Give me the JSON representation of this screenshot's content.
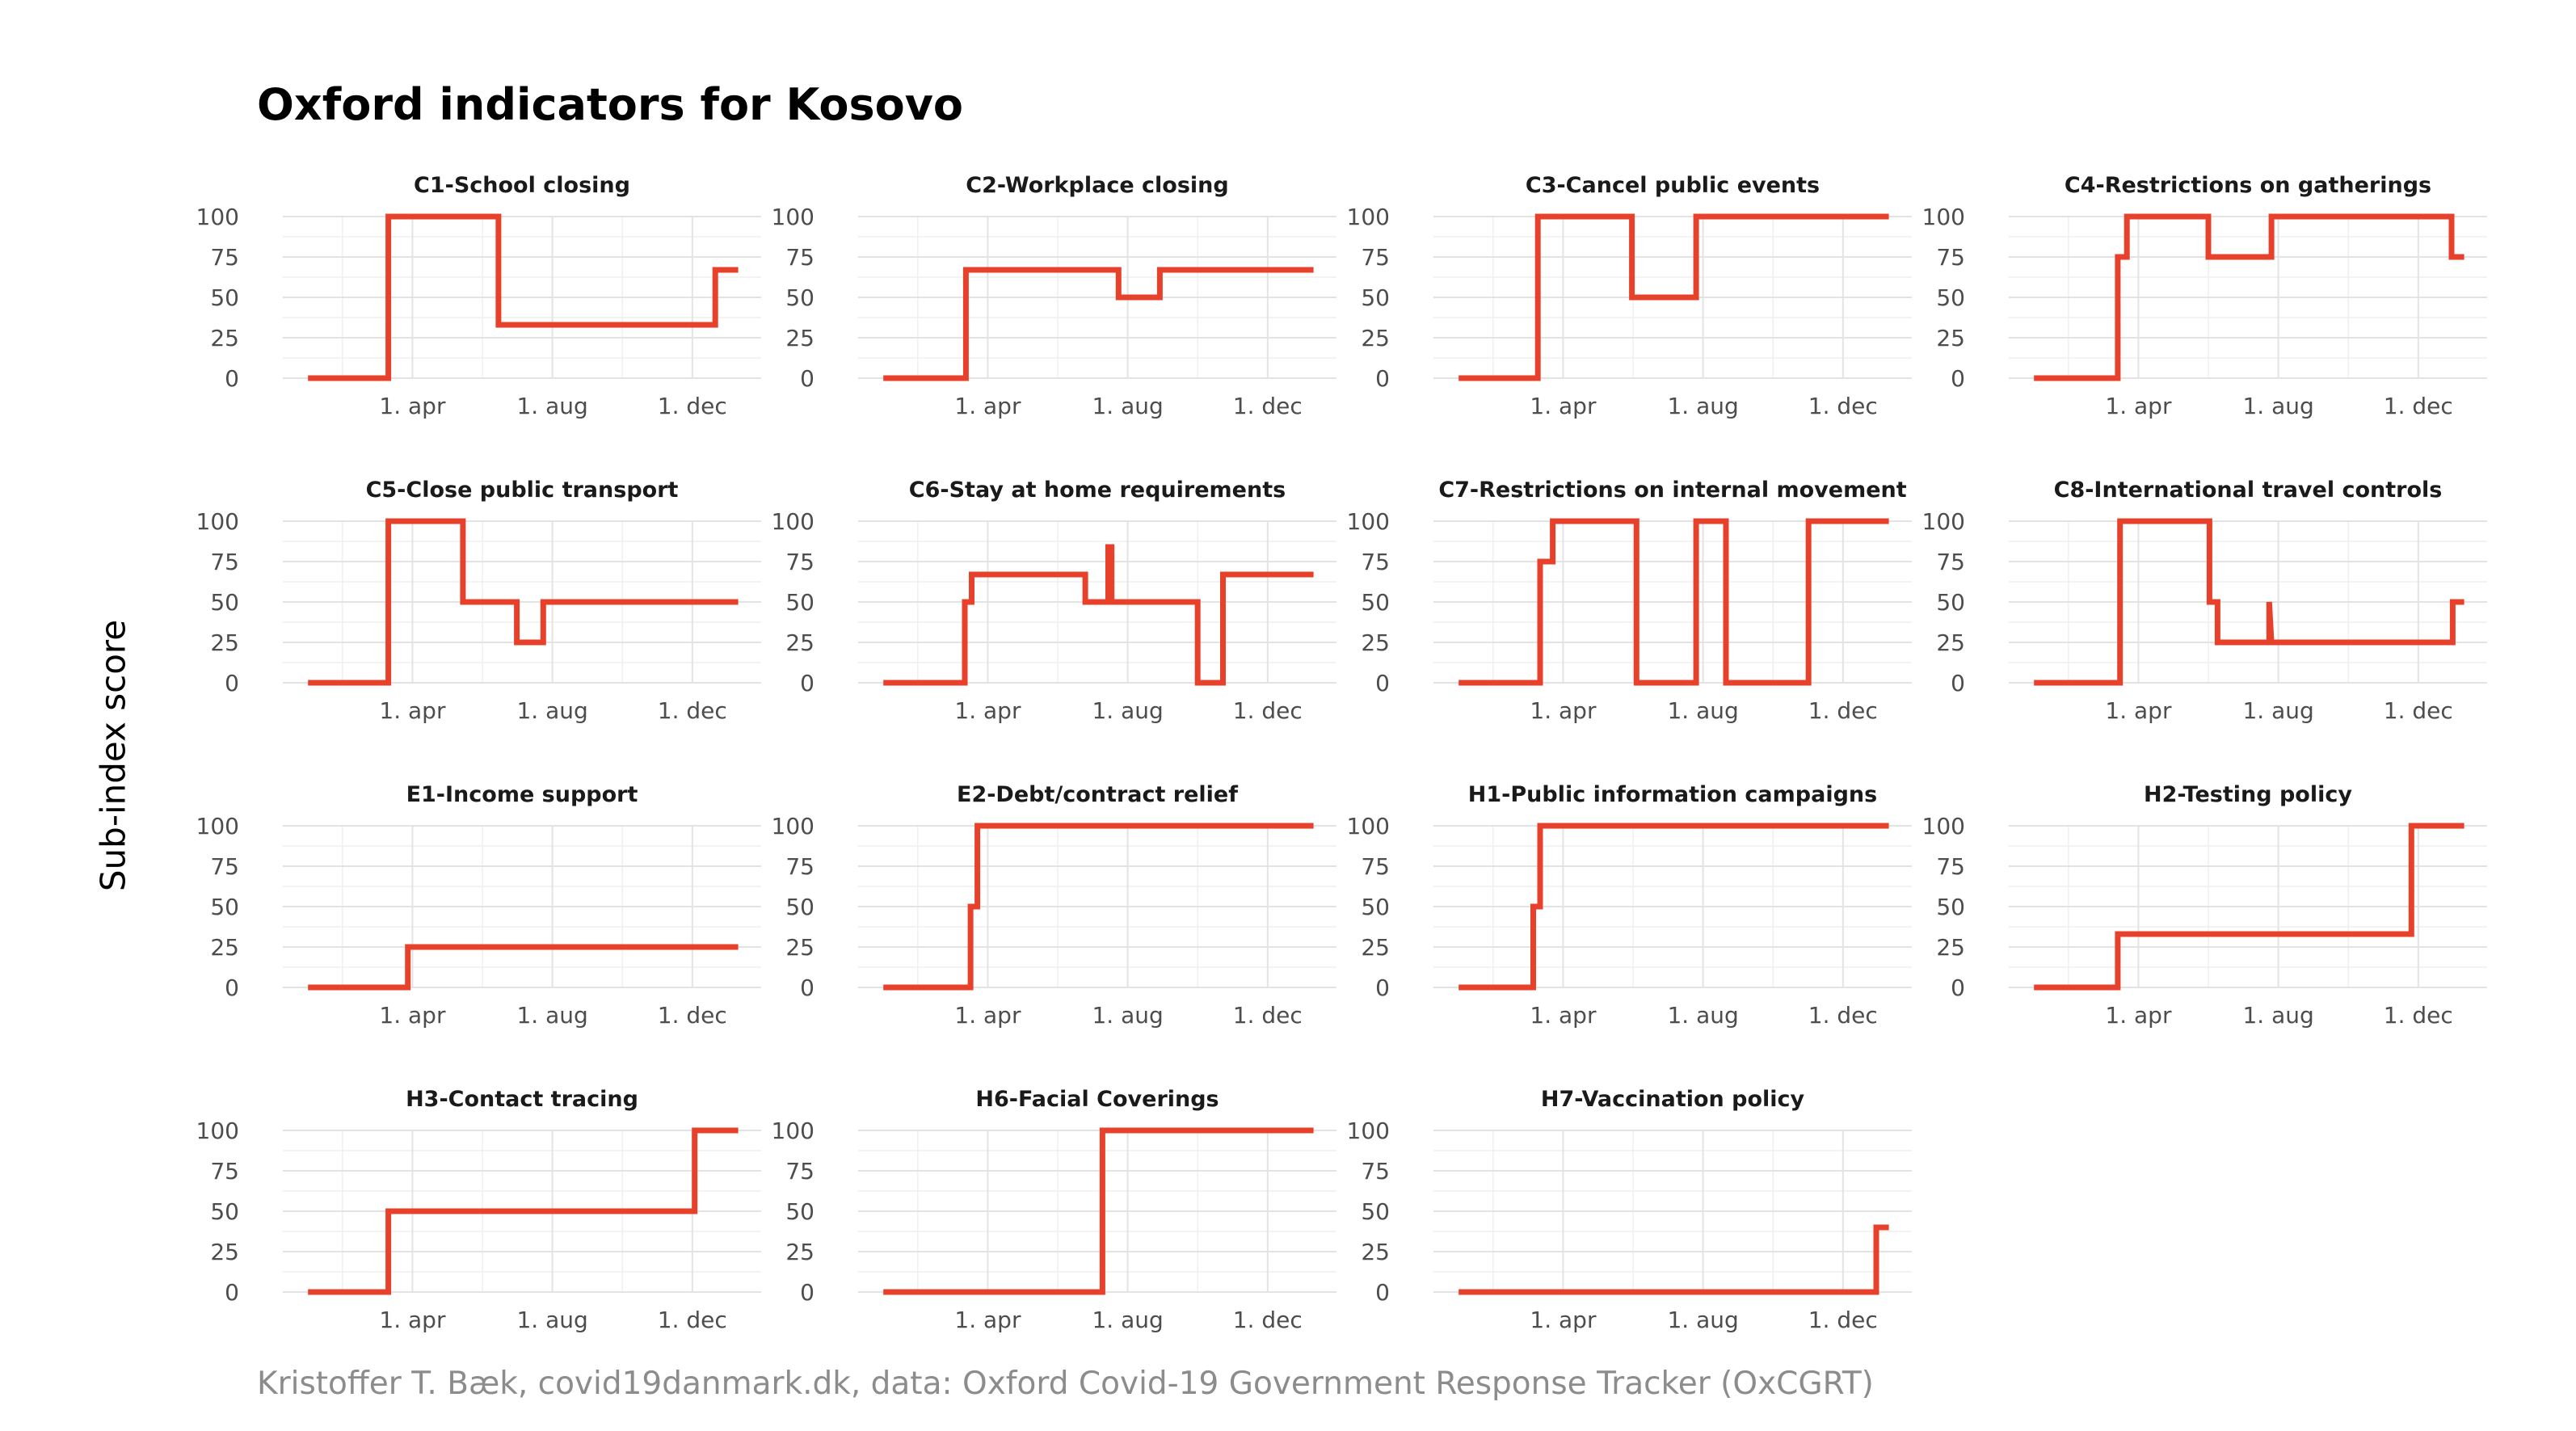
{
  "title": "Oxford indicators for Kosovo",
  "ylabel": "Sub-index score",
  "caption": "Kristoffer T. Bæk, covid19danmark.dk, data: Oxford Covid-19 Government Response Tracker (OxCGRT)",
  "colors": {
    "line": "#e8412b",
    "grid": "#e3e3e3"
  },
  "chart_data": [
    {
      "type": "line",
      "title": "C1-School closing",
      "x": [
        "2020-01-01",
        "2020-03-11",
        "2020-03-11",
        "2020-06-15",
        "2020-06-15",
        "2020-12-21",
        "2020-12-21",
        "2021-01-10"
      ],
      "y": [
        0,
        0,
        100,
        100,
        33,
        33,
        67,
        67
      ],
      "ylim": [
        0,
        100
      ],
      "yticks": [
        "0",
        "25",
        "50",
        "75",
        "100"
      ],
      "xticks": [
        "1. apr",
        "1. aug",
        "1. dec"
      ],
      "xtick_dates": [
        "2020-04-01",
        "2020-08-01",
        "2020-12-01"
      ],
      "xlim": [
        "2019-12-10",
        "2021-01-30"
      ],
      "grid": true
    },
    {
      "type": "line",
      "title": "C2-Workplace closing",
      "x": [
        "2020-01-01",
        "2020-03-13",
        "2020-03-13",
        "2020-07-24",
        "2020-07-24",
        "2020-08-29",
        "2020-08-29",
        "2021-01-10"
      ],
      "y": [
        0,
        0,
        67,
        67,
        50,
        50,
        67,
        67
      ],
      "ylim": [
        0,
        100
      ],
      "yticks": [
        "0",
        "25",
        "50",
        "75",
        "100"
      ],
      "xticks": [
        "1. apr",
        "1. aug",
        "1. dec"
      ],
      "xtick_dates": [
        "2020-04-01",
        "2020-08-01",
        "2020-12-01"
      ],
      "xlim": [
        "2019-12-10",
        "2021-01-30"
      ],
      "grid": true
    },
    {
      "type": "line",
      "title": "C3-Cancel public events",
      "x": [
        "2020-01-01",
        "2020-03-10",
        "2020-03-10",
        "2020-05-31",
        "2020-05-31",
        "2020-07-26",
        "2020-07-26",
        "2021-01-10"
      ],
      "y": [
        0,
        0,
        100,
        100,
        50,
        50,
        100,
        100
      ],
      "ylim": [
        0,
        100
      ],
      "yticks": [
        "0",
        "25",
        "50",
        "75",
        "100"
      ],
      "xticks": [
        "1. apr",
        "1. aug",
        "1. dec"
      ],
      "xtick_dates": [
        "2020-04-01",
        "2020-08-01",
        "2020-12-01"
      ],
      "xlim": [
        "2019-12-10",
        "2021-01-30"
      ],
      "grid": true
    },
    {
      "type": "line",
      "title": "C4-Restrictions on gatherings",
      "x": [
        "2020-01-01",
        "2020-03-14",
        "2020-03-14",
        "2020-03-22",
        "2020-03-22",
        "2020-06-01",
        "2020-06-01",
        "2020-07-26",
        "2020-07-26",
        "2020-12-30",
        "2020-12-30",
        "2021-01-10"
      ],
      "y": [
        0,
        0,
        75,
        75,
        100,
        100,
        75,
        75,
        100,
        100,
        75,
        75
      ],
      "ylim": [
        0,
        100
      ],
      "yticks": [
        "0",
        "25",
        "50",
        "75",
        "100"
      ],
      "xticks": [
        "1. apr",
        "1. aug",
        "1. dec"
      ],
      "xtick_dates": [
        "2020-04-01",
        "2020-08-01",
        "2020-12-01"
      ],
      "xlim": [
        "2019-12-10",
        "2021-01-30"
      ],
      "grid": true
    },
    {
      "type": "line",
      "title": "C5-Close public transport",
      "x": [
        "2020-01-01",
        "2020-03-11",
        "2020-03-11",
        "2020-05-15",
        "2020-05-15",
        "2020-07-01",
        "2020-07-01",
        "2020-07-24",
        "2020-07-24",
        "2021-01-10"
      ],
      "y": [
        0,
        0,
        100,
        100,
        50,
        50,
        25,
        25,
        50,
        50
      ],
      "ylim": [
        0,
        100
      ],
      "yticks": [
        "0",
        "25",
        "50",
        "75",
        "100"
      ],
      "xticks": [
        "1. apr",
        "1. aug",
        "1. dec"
      ],
      "xtick_dates": [
        "2020-04-01",
        "2020-08-01",
        "2020-12-01"
      ],
      "xlim": [
        "2019-12-10",
        "2021-01-30"
      ],
      "grid": true
    },
    {
      "type": "line",
      "title": "C6-Stay at home requirements",
      "x": [
        "2020-01-01",
        "2020-03-12",
        "2020-03-12",
        "2020-03-18",
        "2020-03-18",
        "2020-06-25",
        "2020-06-25",
        "2020-07-15",
        "2020-07-15",
        "2020-07-18",
        "2020-07-18",
        "2020-10-01",
        "2020-10-01",
        "2020-10-23",
        "2020-10-23",
        "2021-01-10"
      ],
      "y": [
        0,
        0,
        50,
        50,
        67,
        67,
        50,
        50,
        84,
        84,
        50,
        50,
        0,
        0,
        67,
        67
      ],
      "ylim": [
        0,
        100
      ],
      "yticks": [
        "0",
        "25",
        "50",
        "75",
        "100"
      ],
      "xticks": [
        "1. apr",
        "1. aug",
        "1. dec"
      ],
      "xtick_dates": [
        "2020-04-01",
        "2020-08-01",
        "2020-12-01"
      ],
      "xlim": [
        "2019-12-10",
        "2021-01-30"
      ],
      "grid": true
    },
    {
      "type": "line",
      "title": "C7-Restrictions on internal movement",
      "x": [
        "2020-01-01",
        "2020-03-12",
        "2020-03-12",
        "2020-03-23",
        "2020-03-23",
        "2020-06-04",
        "2020-06-04",
        "2020-07-26",
        "2020-07-26",
        "2020-08-21",
        "2020-08-21",
        "2020-11-01",
        "2020-11-01",
        "2021-01-10"
      ],
      "y": [
        0,
        0,
        75,
        75,
        100,
        100,
        0,
        0,
        100,
        100,
        0,
        0,
        100,
        100
      ],
      "ylim": [
        0,
        100
      ],
      "yticks": [
        "0",
        "25",
        "50",
        "75",
        "100"
      ],
      "xticks": [
        "1. apr",
        "1. aug",
        "1. dec"
      ],
      "xtick_dates": [
        "2020-04-01",
        "2020-08-01",
        "2020-12-01"
      ],
      "xlim": [
        "2019-12-10",
        "2021-01-30"
      ],
      "grid": true
    },
    {
      "type": "line",
      "title": "C8-International travel controls",
      "x": [
        "2020-01-01",
        "2020-03-16",
        "2020-03-16",
        "2020-06-02",
        "2020-06-02",
        "2020-06-09",
        "2020-06-09",
        "2020-07-24",
        "2020-07-24",
        "2020-07-26",
        "2020-07-26",
        "2020-12-31",
        "2020-12-31",
        "2021-01-10"
      ],
      "y": [
        0,
        0,
        100,
        100,
        50,
        50,
        25,
        25,
        50,
        25,
        25,
        25,
        50,
        50
      ],
      "ylim": [
        0,
        100
      ],
      "yticks": [
        "0",
        "25",
        "50",
        "75",
        "100"
      ],
      "xticks": [
        "1. apr",
        "1. aug",
        "1. dec"
      ],
      "xtick_dates": [
        "2020-04-01",
        "2020-08-01",
        "2020-12-01"
      ],
      "xlim": [
        "2019-12-10",
        "2021-01-30"
      ],
      "grid": true
    },
    {
      "type": "line",
      "title": "E1-Income support",
      "x": [
        "2020-01-01",
        "2020-03-28",
        "2020-03-28",
        "2021-01-10"
      ],
      "y": [
        0,
        0,
        25,
        25
      ],
      "ylim": [
        0,
        100
      ],
      "yticks": [
        "0",
        "25",
        "50",
        "75",
        "100"
      ],
      "xticks": [
        "1. apr",
        "1. aug",
        "1. dec"
      ],
      "xtick_dates": [
        "2020-04-01",
        "2020-08-01",
        "2020-12-01"
      ],
      "xlim": [
        "2019-12-10",
        "2021-01-30"
      ],
      "grid": true
    },
    {
      "type": "line",
      "title": "E2-Debt/contract relief",
      "x": [
        "2020-01-01",
        "2020-03-17",
        "2020-03-17",
        "2020-03-23",
        "2020-03-23",
        "2021-01-10"
      ],
      "y": [
        0,
        0,
        50,
        50,
        100,
        100
      ],
      "ylim": [
        0,
        100
      ],
      "yticks": [
        "0",
        "25",
        "50",
        "75",
        "100"
      ],
      "xticks": [
        "1. apr",
        "1. aug",
        "1. dec"
      ],
      "xtick_dates": [
        "2020-04-01",
        "2020-08-01",
        "2020-12-01"
      ],
      "xlim": [
        "2019-12-10",
        "2021-01-30"
      ],
      "grid": true
    },
    {
      "type": "line",
      "title": "H1-Public information campaigns",
      "x": [
        "2020-01-01",
        "2020-03-06",
        "2020-03-06",
        "2020-03-12",
        "2020-03-12",
        "2021-01-10"
      ],
      "y": [
        0,
        0,
        50,
        50,
        100,
        100
      ],
      "ylim": [
        0,
        100
      ],
      "yticks": [
        "0",
        "25",
        "50",
        "75",
        "100"
      ],
      "xticks": [
        "1. apr",
        "1. aug",
        "1. dec"
      ],
      "xtick_dates": [
        "2020-04-01",
        "2020-08-01",
        "2020-12-01"
      ],
      "xlim": [
        "2019-12-10",
        "2021-01-30"
      ],
      "grid": true
    },
    {
      "type": "line",
      "title": "H2-Testing policy",
      "x": [
        "2020-01-01",
        "2020-03-14",
        "2020-03-14",
        "2020-11-25",
        "2020-11-25",
        "2021-01-10"
      ],
      "y": [
        0,
        0,
        33,
        33,
        100,
        100
      ],
      "ylim": [
        0,
        100
      ],
      "yticks": [
        "0",
        "25",
        "50",
        "75",
        "100"
      ],
      "xticks": [
        "1. apr",
        "1. aug",
        "1. dec"
      ],
      "xtick_dates": [
        "2020-04-01",
        "2020-08-01",
        "2020-12-01"
      ],
      "xlim": [
        "2019-12-10",
        "2021-01-30"
      ],
      "grid": true
    },
    {
      "type": "line",
      "title": "H3-Contact tracing",
      "x": [
        "2020-01-01",
        "2020-03-11",
        "2020-03-11",
        "2020-12-03",
        "2020-12-03",
        "2021-01-10"
      ],
      "y": [
        0,
        0,
        50,
        50,
        100,
        100
      ],
      "ylim": [
        0,
        100
      ],
      "yticks": [
        "0",
        "25",
        "50",
        "75",
        "100"
      ],
      "xticks": [
        "1. apr",
        "1. aug",
        "1. dec"
      ],
      "xtick_dates": [
        "2020-04-01",
        "2020-08-01",
        "2020-12-01"
      ],
      "xlim": [
        "2019-12-10",
        "2021-01-30"
      ],
      "grid": true
    },
    {
      "type": "line",
      "title": "H6-Facial Coverings",
      "x": [
        "2020-01-01",
        "2020-07-10",
        "2020-07-10",
        "2021-01-10"
      ],
      "y": [
        0,
        0,
        100,
        100
      ],
      "ylim": [
        0,
        100
      ],
      "yticks": [
        "0",
        "25",
        "50",
        "75",
        "100"
      ],
      "xticks": [
        "1. apr",
        "1. aug",
        "1. dec"
      ],
      "xtick_dates": [
        "2020-04-01",
        "2020-08-01",
        "2020-12-01"
      ],
      "xlim": [
        "2019-12-10",
        "2021-01-30"
      ],
      "grid": true
    },
    {
      "type": "line",
      "title": "H7-Vaccination policy",
      "x": [
        "2020-01-01",
        "2020-12-30",
        "2020-12-30",
        "2021-01-10"
      ],
      "y": [
        0,
        0,
        40,
        40
      ],
      "ylim": [
        0,
        100
      ],
      "yticks": [
        "0",
        "25",
        "50",
        "75",
        "100"
      ],
      "xticks": [
        "1. apr",
        "1. aug",
        "1. dec"
      ],
      "xtick_dates": [
        "2020-04-01",
        "2020-08-01",
        "2020-12-01"
      ],
      "xlim": [
        "2019-12-10",
        "2021-01-30"
      ],
      "grid": true
    }
  ]
}
